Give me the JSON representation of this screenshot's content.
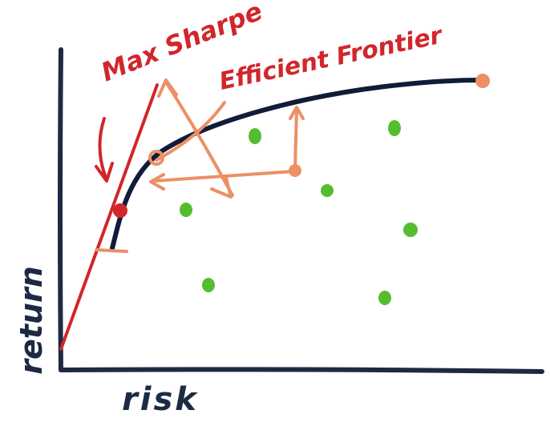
{
  "labels": {
    "max_sharpe": "Max Sharpe",
    "efficient_frontier": "Efficient Frontier",
    "x_axis": "risk",
    "y_axis": "return"
  },
  "colors": {
    "axis": "#1c2a44",
    "frontier": "#0f1c3a",
    "red": "#d1262b",
    "orange": "#ec9065",
    "green": "#54bd2f"
  }
}
